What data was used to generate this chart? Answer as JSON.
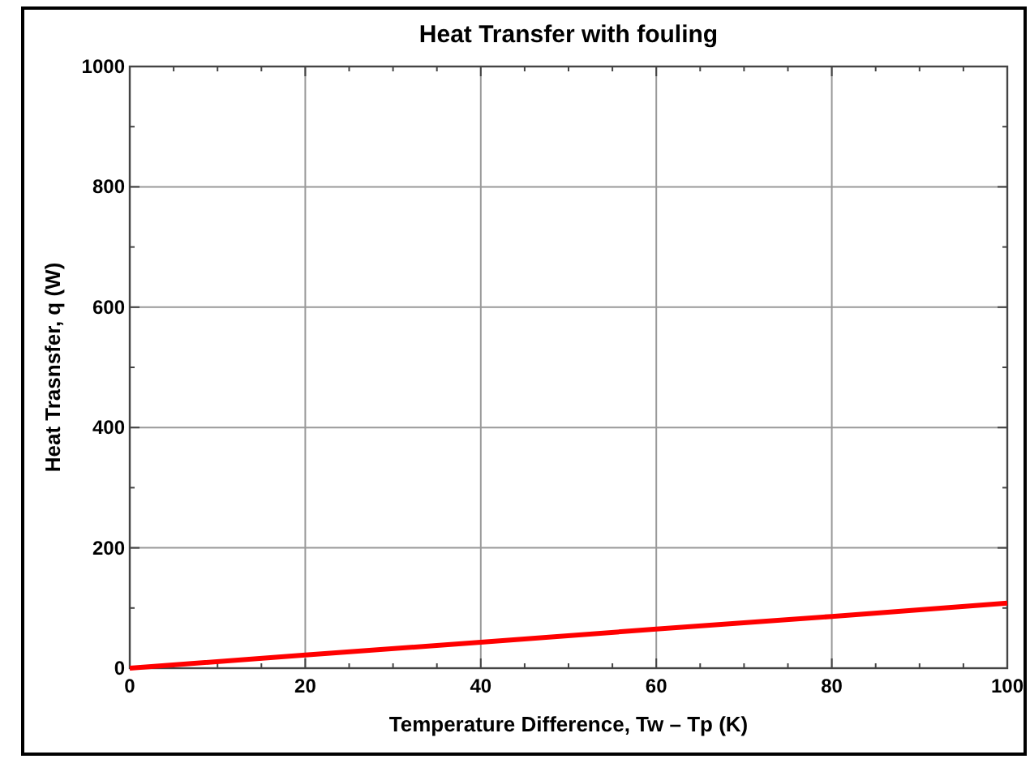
{
  "chart_data": {
    "type": "line",
    "title": "Heat Transfer with fouling",
    "xlabel": "Temperature Difference, Tw – Tp (K)",
    "ylabel": "Heat Trasnsfer, q (W)",
    "x": [
      0,
      20,
      40,
      60,
      80,
      100
    ],
    "series": [
      {
        "color": "#ff0000",
        "values": [
          0,
          22,
          43,
          65,
          86,
          108
        ]
      }
    ],
    "xlim": [
      0,
      100
    ],
    "ylim": [
      0,
      1000
    ],
    "xticks": [
      0,
      {
        "value": 5,
        "label": null
      },
      {
        "value": 10,
        "label": null
      },
      {
        "value": 15,
        "label": null
      },
      20,
      {
        "value": 25,
        "label": null
      },
      {
        "value": 30,
        "label": null
      },
      {
        "value": 35,
        "label": null
      },
      40,
      {
        "value": 45,
        "label": null
      },
      {
        "value": 50,
        "label": null
      },
      {
        "value": 55,
        "label": null
      },
      60,
      {
        "value": 65,
        "label": null
      },
      {
        "value": 70,
        "label": null
      },
      {
        "value": 75,
        "label": null
      },
      80,
      {
        "value": 85,
        "label": null
      },
      {
        "value": 90,
        "label": null
      },
      {
        "value": 95,
        "label": null
      },
      100
    ],
    "yticks": [
      0,
      {
        "value": 100,
        "label": null
      },
      200,
      {
        "value": 300,
        "label": null
      },
      400,
      {
        "value": 500,
        "label": null
      },
      600,
      {
        "value": 700,
        "label": null
      },
      800,
      {
        "value": 900,
        "label": null
      },
      1000
    ],
    "grid": true,
    "marker": "none",
    "line_style": "solid"
  }
}
